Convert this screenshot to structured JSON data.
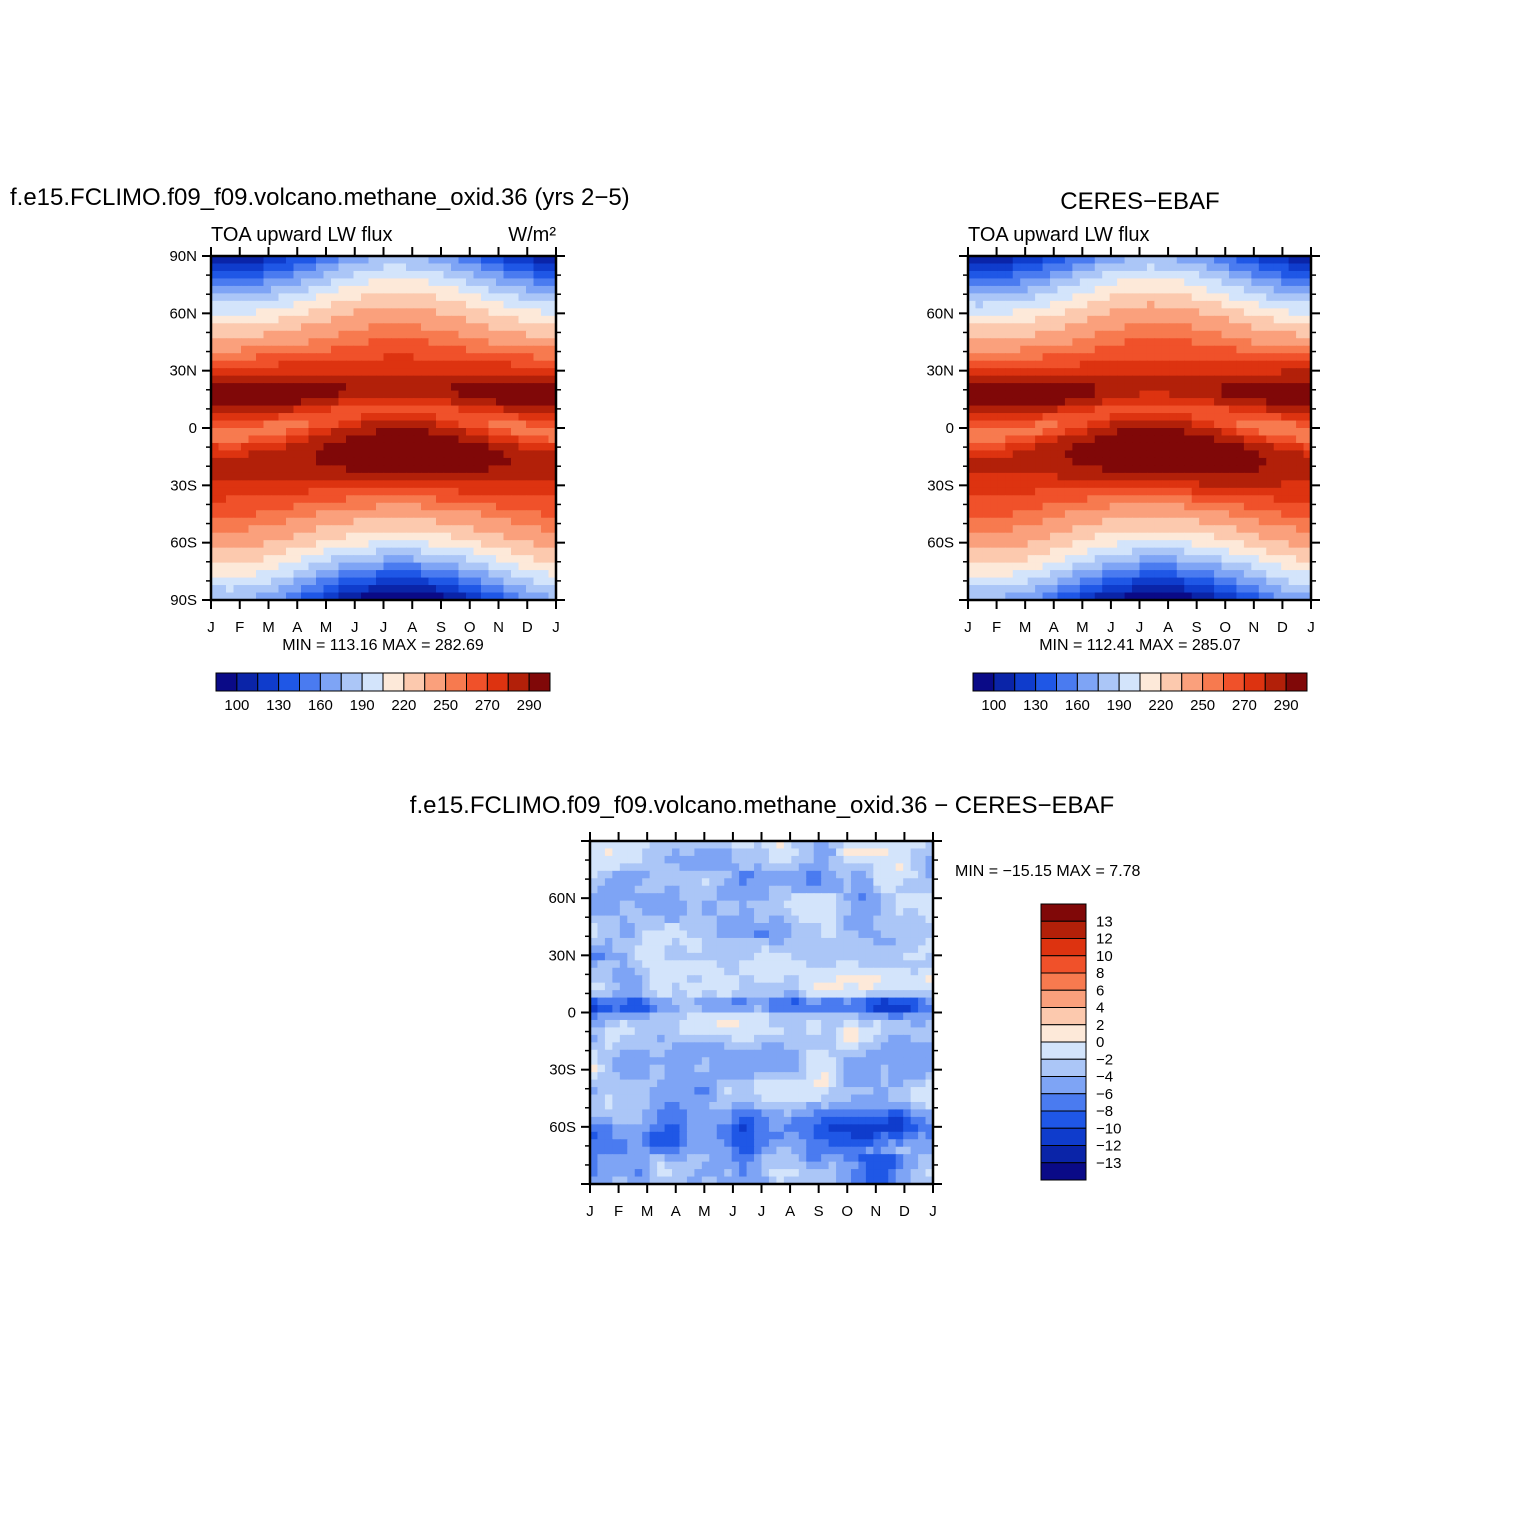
{
  "chart_data": [
    {
      "type": "heatmap",
      "title": "f.e15.FCLIMO.f09_f09.volcano.methane_oxid.36 (yrs 2−5)",
      "subtitle_left": "TOA upward LW flux",
      "subtitle_right": "W/m²",
      "x_categories": [
        "J",
        "F",
        "M",
        "A",
        "M",
        "J",
        "J",
        "A",
        "S",
        "O",
        "N",
        "D",
        "J"
      ],
      "y_ticks": [
        "90N",
        "60N",
        "30N",
        "0",
        "30S",
        "60S",
        "90S"
      ],
      "stats": "MIN = 113.16 MAX = 282.69",
      "min": 113.16,
      "max": 282.69,
      "field": "absolute",
      "colorbar": {
        "labels": [
          "100",
          "130",
          "160",
          "190",
          "220",
          "250",
          "270",
          "290"
        ],
        "colors": [
          "#0a0a87",
          "#0a24a8",
          "#0f3ccc",
          "#1f57e6",
          "#4a7bf0",
          "#7ea4f5",
          "#abc6f7",
          "#d3e4fb",
          "#fde9d9",
          "#fcc9ae",
          "#faa07c",
          "#f77a4f",
          "#f0512a",
          "#dd3310",
          "#b22009",
          "#800808"
        ]
      }
    },
    {
      "type": "heatmap",
      "title": "CERES−EBAF",
      "subtitle_left": "TOA upward LW flux",
      "subtitle_right": "",
      "x_categories": [
        "J",
        "F",
        "M",
        "A",
        "M",
        "J",
        "J",
        "A",
        "S",
        "O",
        "N",
        "D",
        "J"
      ],
      "y_ticks": [
        "",
        "60N",
        "30N",
        "0",
        "30S",
        "60S",
        ""
      ],
      "stats": "MIN = 112.41 MAX = 285.07",
      "min": 112.41,
      "max": 285.07,
      "field": "absolute",
      "colorbar": {
        "labels": [
          "100",
          "130",
          "160",
          "190",
          "220",
          "250",
          "270",
          "290"
        ],
        "colors": [
          "#0a0a87",
          "#0a24a8",
          "#0f3ccc",
          "#1f57e6",
          "#4a7bf0",
          "#7ea4f5",
          "#abc6f7",
          "#d3e4fb",
          "#fde9d9",
          "#fcc9ae",
          "#faa07c",
          "#f77a4f",
          "#f0512a",
          "#dd3310",
          "#b22009",
          "#800808"
        ]
      }
    },
    {
      "type": "heatmap",
      "title": "f.e15.FCLIMO.f09_f09.volcano.methane_oxid.36 − CERES−EBAF",
      "x_categories": [
        "J",
        "F",
        "M",
        "A",
        "M",
        "J",
        "J",
        "A",
        "S",
        "O",
        "N",
        "D",
        "J"
      ],
      "y_ticks": [
        "",
        "60N",
        "30N",
        "0",
        "30S",
        "60S",
        ""
      ],
      "stats": "MIN = −15.15 MAX =    7.78",
      "min": -15.15,
      "max": 7.78,
      "field": "difference",
      "colorbar": {
        "labels": [
          "13",
          "12",
          "10",
          "8",
          "6",
          "4",
          "2",
          "0",
          "−2",
          "−4",
          "−6",
          "−8",
          "−10",
          "−12",
          "−13"
        ],
        "colors": [
          "#800808",
          "#b22009",
          "#dd3310",
          "#f0512a",
          "#f77a4f",
          "#faa07c",
          "#fcc9ae",
          "#fde9d9",
          "#d3e4fb",
          "#abc6f7",
          "#7ea4f5",
          "#4a7bf0",
          "#1f57e6",
          "#0f3ccc",
          "#0a24a8",
          "#0a0a87"
        ]
      }
    }
  ]
}
